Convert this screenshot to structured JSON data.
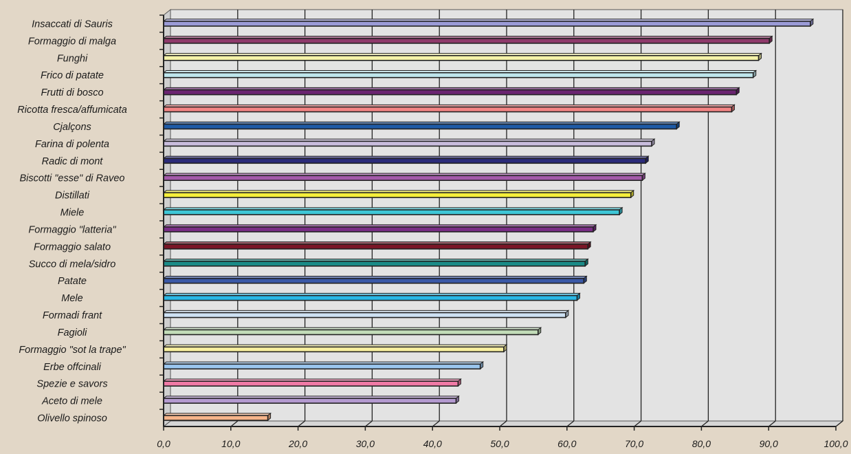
{
  "chart_data": {
    "type": "bar",
    "orientation": "horizontal",
    "style": "3d",
    "grid": true,
    "legend": "none",
    "xlim": [
      0,
      100
    ],
    "x_ticks": [
      "0,0",
      "10,0",
      "20,0",
      "30,0",
      "40,0",
      "50,0",
      "60,0",
      "70,0",
      "80,0",
      "90,0",
      "100,0"
    ],
    "categories": [
      "Insaccati di Sauris",
      "Formaggio di malga",
      "Funghi",
      "Frico di patate",
      "Frutti di bosco",
      "Ricotta fresca/affumicata",
      "Cjalçons",
      "Farina di polenta",
      "Radic di mont",
      "Biscotti \"esse\" di Raveo",
      "Distillati",
      "Miele",
      "Formaggio \"latteria\"",
      "Formaggio salato",
      "Succo di mela/sidro",
      "Patate",
      "Mele",
      "Formadi frant",
      "Fagioli",
      "Formaggio \"sot la trape\"",
      "Erbe offcinali",
      "Spezie e savors",
      "Aceto di mele",
      "Olivello spinoso"
    ],
    "values": [
      96.2,
      90.1,
      88.5,
      87.7,
      85.2,
      84.5,
      76.3,
      72.6,
      71.7,
      71.2,
      69.5,
      67.8,
      63.9,
      63.1,
      62.7,
      62.5,
      61.5,
      59.8,
      55.7,
      50.6,
      47.1,
      43.8,
      43.5,
      15.5
    ],
    "colors": [
      "#9a9ad6",
      "#8e3a6a",
      "#f4f2a8",
      "#bfe6ec",
      "#6a2470",
      "#f28484",
      "#1e5aa6",
      "#c8bcdc",
      "#2b2b7a",
      "#a45aaa",
      "#f5ee3a",
      "#3ec6d6",
      "#7a2e86",
      "#7a1626",
      "#1a8a86",
      "#3a58a6",
      "#2ab8e6",
      "#cfe2f4",
      "#c2dcb8",
      "#f7ef9e",
      "#9ac6ee",
      "#f07aa6",
      "#b49ad0",
      "#f6b48a"
    ]
  }
}
